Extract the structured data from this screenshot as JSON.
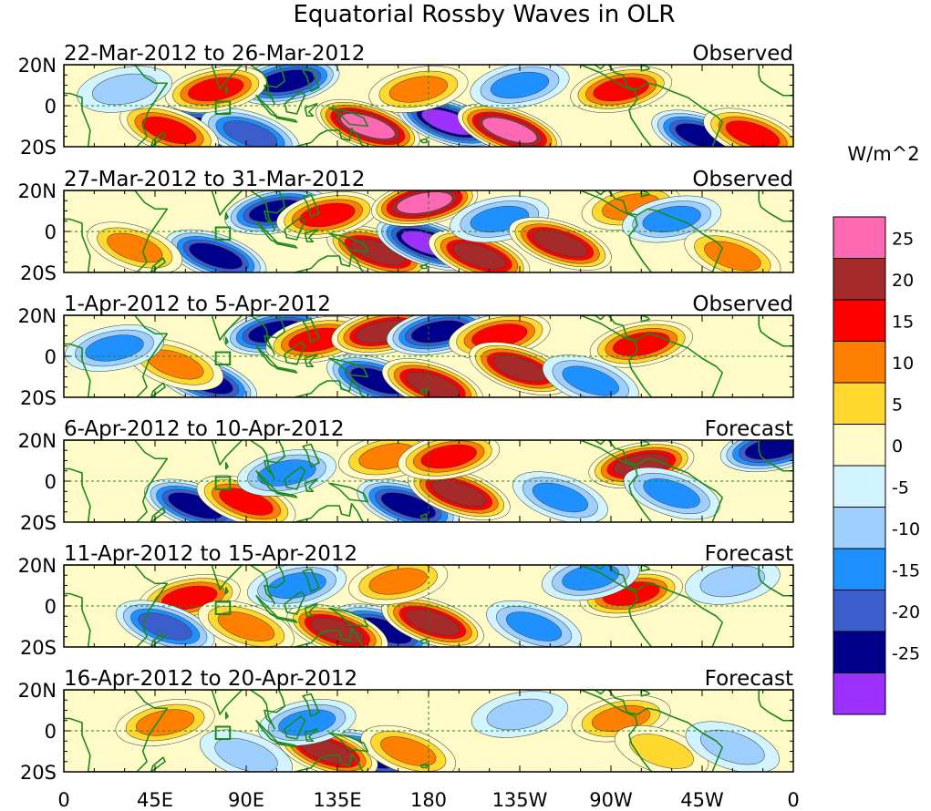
{
  "chart_data": {
    "type": "heatmap",
    "title": "Equatorial Rossby Waves in OLR",
    "units_label": "W/m^2",
    "x_ticks": [
      "0",
      "45E",
      "90E",
      "135E",
      "180",
      "135W",
      "90W",
      "45W",
      "0"
    ],
    "y_ticks": [
      "20N",
      "0",
      "20S"
    ],
    "xlim": [
      0,
      360
    ],
    "ylim": [
      -20,
      20
    ],
    "colorbar": {
      "levels": [
        -25,
        -20,
        -15,
        -10,
        -5,
        0,
        5,
        10,
        15,
        20,
        25
      ],
      "tick_labels": [
        "25",
        "20",
        "15",
        "10",
        "5",
        "0",
        "-5",
        "-10",
        "-15",
        "-20",
        "-25"
      ],
      "colors": [
        "#9b30ff",
        "#00008b",
        "#3a5fcd",
        "#1e90ff",
        "#9fcfff",
        "#d2f4ff",
        "#fffbc8",
        "#ffd830",
        "#ff7f00",
        "#ff0000",
        "#a52a2a",
        "#ff69b4"
      ]
    },
    "panels": [
      {
        "date_range": "22-Mar-2012 to 26-Mar-2012",
        "status": "Observed",
        "blobs": [
          {
            "lon": 110,
            "lat": 12,
            "v": -24
          },
          {
            "lon": 72,
            "lat": -12,
            "v": -22
          },
          {
            "lon": 92,
            "lat": -14,
            "v": -18
          },
          {
            "lon": 150,
            "lat": -10,
            "v": 27
          },
          {
            "lon": 190,
            "lat": -8,
            "v": -27
          },
          {
            "lon": 220,
            "lat": -12,
            "v": 27
          },
          {
            "lon": 52,
            "lat": -12,
            "v": 18
          },
          {
            "lon": 75,
            "lat": 8,
            "v": 18
          },
          {
            "lon": 175,
            "lat": 8,
            "v": 14
          },
          {
            "lon": 225,
            "lat": 10,
            "v": -14
          },
          {
            "lon": 275,
            "lat": 8,
            "v": 18
          },
          {
            "lon": 315,
            "lat": -15,
            "v": -22
          },
          {
            "lon": 340,
            "lat": -14,
            "v": 18
          },
          {
            "lon": 30,
            "lat": 8,
            "v": -8
          }
        ]
      },
      {
        "date_range": "27-Mar-2012 to 31-Mar-2012",
        "status": "Observed",
        "blobs": [
          {
            "lon": 105,
            "lat": 10,
            "v": -22
          },
          {
            "lon": 75,
            "lat": -12,
            "v": -22
          },
          {
            "lon": 155,
            "lat": -10,
            "v": 24
          },
          {
            "lon": 180,
            "lat": -6,
            "v": -27
          },
          {
            "lon": 205,
            "lat": -12,
            "v": 22
          },
          {
            "lon": 130,
            "lat": 8,
            "v": 18
          },
          {
            "lon": 178,
            "lat": 14,
            "v": 26
          },
          {
            "lon": 215,
            "lat": 6,
            "v": -14
          },
          {
            "lon": 245,
            "lat": -6,
            "v": 24
          },
          {
            "lon": 280,
            "lat": 12,
            "v": 14
          },
          {
            "lon": 300,
            "lat": 6,
            "v": -14
          },
          {
            "lon": 35,
            "lat": -8,
            "v": 12
          },
          {
            "lon": 330,
            "lat": -12,
            "v": 14
          }
        ]
      },
      {
        "date_range": "1-Apr-2012 to 5-Apr-2012",
        "status": "Observed",
        "blobs": [
          {
            "lon": 105,
            "lat": 12,
            "v": -24
          },
          {
            "lon": 125,
            "lat": 8,
            "v": 20
          },
          {
            "lon": 158,
            "lat": 12,
            "v": 24
          },
          {
            "lon": 185,
            "lat": 12,
            "v": -22
          },
          {
            "lon": 215,
            "lat": 10,
            "v": 18
          },
          {
            "lon": 155,
            "lat": -12,
            "v": -24
          },
          {
            "lon": 182,
            "lat": -14,
            "v": 22
          },
          {
            "lon": 225,
            "lat": -6,
            "v": 22
          },
          {
            "lon": 70,
            "lat": -12,
            "v": -24
          },
          {
            "lon": 55,
            "lat": -4,
            "v": 14
          },
          {
            "lon": 285,
            "lat": 6,
            "v": 20
          },
          {
            "lon": 25,
            "lat": 4,
            "v": -14
          },
          {
            "lon": 260,
            "lat": -12,
            "v": -14
          }
        ]
      },
      {
        "date_range": "6-Apr-2012 to 10-Apr-2012",
        "status": "Forecast",
        "blobs": [
          {
            "lon": 170,
            "lat": -12,
            "v": -24
          },
          {
            "lon": 195,
            "lat": -6,
            "v": 24
          },
          {
            "lon": 65,
            "lat": -12,
            "v": -24
          },
          {
            "lon": 90,
            "lat": -10,
            "v": 18
          },
          {
            "lon": 110,
            "lat": 4,
            "v": -14
          },
          {
            "lon": 160,
            "lat": 12,
            "v": 14
          },
          {
            "lon": 190,
            "lat": 12,
            "v": 18
          },
          {
            "lon": 285,
            "lat": 8,
            "v": 24
          },
          {
            "lon": 300,
            "lat": -6,
            "v": -14
          },
          {
            "lon": 350,
            "lat": 16,
            "v": -24
          },
          {
            "lon": 245,
            "lat": -8,
            "v": -12
          }
        ]
      },
      {
        "date_range": "11-Apr-2012 to 15-Apr-2012",
        "status": "Forecast",
        "blobs": [
          {
            "lon": 158,
            "lat": -12,
            "v": -25
          },
          {
            "lon": 135,
            "lat": -12,
            "v": 22
          },
          {
            "lon": 182,
            "lat": -8,
            "v": 24
          },
          {
            "lon": 62,
            "lat": 4,
            "v": 18
          },
          {
            "lon": 50,
            "lat": -10,
            "v": -18
          },
          {
            "lon": 90,
            "lat": -10,
            "v": 14
          },
          {
            "lon": 115,
            "lat": 10,
            "v": -14
          },
          {
            "lon": 165,
            "lat": 12,
            "v": 14
          },
          {
            "lon": 280,
            "lat": 6,
            "v": 20
          },
          {
            "lon": 260,
            "lat": 14,
            "v": -12
          },
          {
            "lon": 232,
            "lat": -10,
            "v": -12
          },
          {
            "lon": 330,
            "lat": 12,
            "v": -8
          }
        ]
      },
      {
        "date_range": "16-Apr-2012 to 20-Apr-2012",
        "status": "Forecast",
        "blobs": [
          {
            "lon": 150,
            "lat": -12,
            "v": -24
          },
          {
            "lon": 130,
            "lat": -10,
            "v": 22
          },
          {
            "lon": 50,
            "lat": 4,
            "v": 14
          },
          {
            "lon": 120,
            "lat": 4,
            "v": -12
          },
          {
            "lon": 170,
            "lat": -10,
            "v": 12
          },
          {
            "lon": 275,
            "lat": 6,
            "v": 14
          },
          {
            "lon": 225,
            "lat": 8,
            "v": -10
          },
          {
            "lon": 295,
            "lat": -10,
            "v": 10
          },
          {
            "lon": 330,
            "lat": -8,
            "v": -10
          },
          {
            "lon": 90,
            "lat": -12,
            "v": -8
          }
        ]
      }
    ]
  }
}
